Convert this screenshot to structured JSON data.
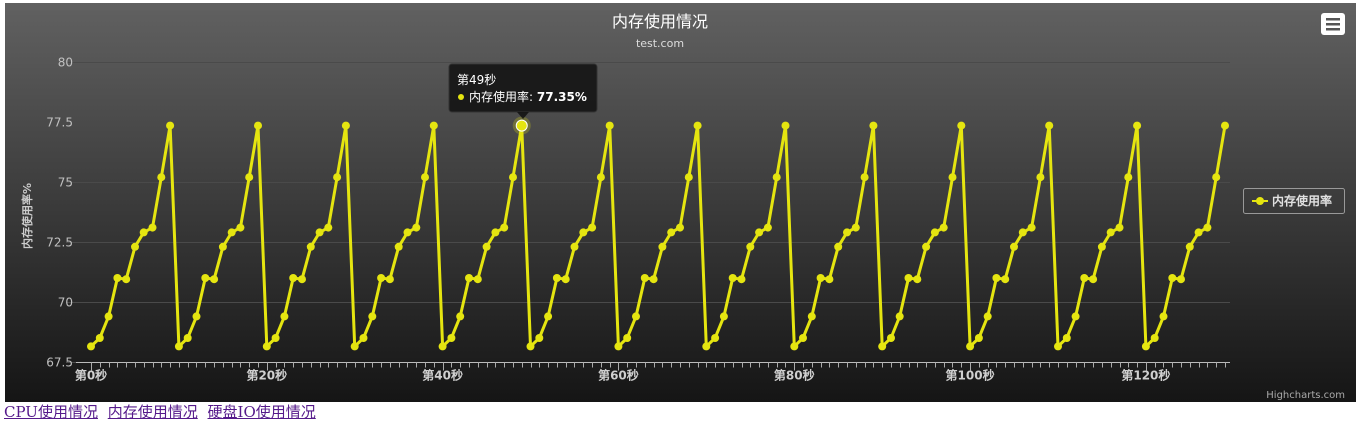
{
  "chart_data": {
    "type": "line",
    "title": "内存使用情况",
    "subtitle": "test.com",
    "ylabel": "内存使用率%",
    "xlabel": "",
    "ylim": [
      67.5,
      80
    ],
    "yticks": [
      "67.5",
      "70",
      "72.5",
      "75",
      "77.5",
      "80"
    ],
    "yvalues": [
      67.5,
      70,
      72.5,
      75,
      77.5,
      80
    ],
    "xrange": [
      0,
      129
    ],
    "xticks": [
      {
        "x": 0,
        "label": "第0秒"
      },
      {
        "x": 20,
        "label": "第20秒"
      },
      {
        "x": 40,
        "label": "第40秒"
      },
      {
        "x": 60,
        "label": "第60秒"
      },
      {
        "x": 80,
        "label": "第80秒"
      },
      {
        "x": 100,
        "label": "第100秒"
      },
      {
        "x": 120,
        "label": "第120秒"
      }
    ],
    "cycle_values": [
      68.15,
      68.5,
      69.4,
      71.0,
      70.95,
      72.3,
      72.9,
      73.1,
      75.2,
      77.35
    ],
    "series": [
      {
        "name": "内存使用率",
        "color": "#e5e510",
        "values": [
          68.15,
          68.5,
          69.4,
          71.0,
          70.95,
          72.3,
          72.9,
          73.1,
          75.2,
          77.35,
          68.15,
          68.5,
          69.4,
          71.0,
          70.95,
          72.3,
          72.9,
          73.1,
          75.2,
          77.35,
          68.15,
          68.5,
          69.4,
          71.0,
          70.95,
          72.3,
          72.9,
          73.1,
          75.2,
          77.35,
          68.15,
          68.5,
          69.4,
          71.0,
          70.95,
          72.3,
          72.9,
          73.1,
          75.2,
          77.35,
          68.15,
          68.5,
          69.4,
          71.0,
          70.95,
          72.3,
          72.9,
          73.1,
          75.2,
          77.35,
          68.15,
          68.5,
          69.4,
          71.0,
          70.95,
          72.3,
          72.9,
          73.1,
          75.2,
          77.35,
          68.15,
          68.5,
          69.4,
          71.0,
          70.95,
          72.3,
          72.9,
          73.1,
          75.2,
          77.35,
          68.15,
          68.5,
          69.4,
          71.0,
          70.95,
          72.3,
          72.9,
          73.1,
          75.2,
          77.35,
          68.15,
          68.5,
          69.4,
          71.0,
          70.95,
          72.3,
          72.9,
          73.1,
          75.2,
          77.35,
          68.15,
          68.5,
          69.4,
          71.0,
          70.95,
          72.3,
          72.9,
          73.1,
          75.2,
          77.35,
          68.15,
          68.5,
          69.4,
          71.0,
          70.95,
          72.3,
          72.9,
          73.1,
          75.2,
          77.35,
          68.15,
          68.5,
          69.4,
          71.0,
          70.95,
          72.3,
          72.9,
          73.1,
          75.2,
          77.35,
          68.15,
          68.5,
          69.4,
          71.0,
          70.95,
          72.3,
          72.9,
          73.1,
          75.2,
          77.35
        ]
      }
    ],
    "legend": {
      "label": "内存使用率",
      "position": "right"
    },
    "tooltip": {
      "title": "第49秒",
      "series": "内存使用率",
      "value": "77.35%",
      "x": 49
    },
    "credits": "Highcharts.com",
    "grid": true
  },
  "colors": {
    "series": "#e5e510",
    "bg_top": "#616161",
    "bg_bottom": "#151515"
  },
  "menu": {
    "icon": "menu-icon"
  },
  "links": [
    {
      "label": "CPU使用情况"
    },
    {
      "label": "内存使用情况"
    },
    {
      "label": "硬盘IO使用情况"
    }
  ]
}
